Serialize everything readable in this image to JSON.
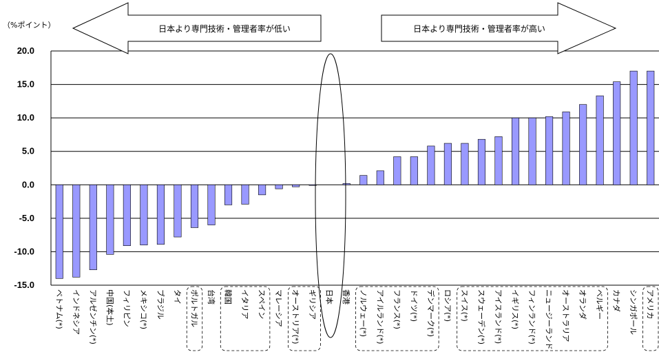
{
  "chart_data": {
    "type": "bar",
    "unit_label": "（%ポイント）",
    "left_arrow_label": "日本より専門技術・管理者率が低い",
    "right_arrow_label": "日本より専門技術・管理者率が高い",
    "ylim": [
      -15,
      20
    ],
    "yticks": [
      "20.0",
      "15.0",
      "10.0",
      "5.0",
      "0.0",
      "-5.0",
      "-10.0",
      "-15.0"
    ],
    "grid": true,
    "bar_color": "#9999ff",
    "categories": [
      "ベトナム(*)",
      "インドネシア",
      "アルゼンチン(*)",
      "中国(本土)",
      "フィリピン",
      "メキシコ(*)",
      "ブラジル",
      "タイ",
      "ポルトガル",
      "台湾",
      "韓国",
      "イタリア",
      "スペイン",
      "マレーシア",
      "オーストリア(*)",
      "ギリシア",
      "日本",
      "香港",
      "ノルウェー(*)",
      "アイルランド(*)",
      "フランス(*)",
      "ドイツ(*)",
      "デンマーク(*)",
      "ロシア(*)",
      "スイス(*)",
      "スウェーデン(*)",
      "アイスランド(*)",
      "イギリス(*)",
      "フィンランド(*)",
      "ニュージーランド",
      "オーストラリア",
      "オランダ",
      "ベルギー",
      "カナダ",
      "シンガポール",
      "アメリカ"
    ],
    "values": [
      -14.0,
      -13.8,
      -12.7,
      -10.4,
      -9.1,
      -9.0,
      -8.9,
      -7.8,
      -6.4,
      -6.0,
      -3.0,
      -2.9,
      -1.5,
      -0.6,
      -0.3,
      -0.1,
      0.0,
      0.2,
      1.4,
      2.1,
      4.2,
      4.2,
      5.8,
      6.2,
      6.2,
      6.8,
      7.2,
      10.0,
      10.0,
      10.2,
      10.9,
      12.0,
      13.3,
      15.4,
      17.0,
      17.0
    ],
    "highlighted": "日本",
    "dashed_groups": [
      [
        "ポルトガル"
      ],
      [
        "韓国",
        "イタリア",
        "スペイン"
      ],
      [
        "オーストリア(*)",
        "ギリシア"
      ],
      [
        "ノルウェー(*)",
        "アイルランド(*)",
        "フランス(*)",
        "ドイツ(*)",
        "デンマーク(*)"
      ],
      [
        "スイス(*)",
        "スウェーデン(*)",
        "アイスランド(*)",
        "イギリス(*)",
        "フィンランド(*)",
        "ニュージーランド",
        "オーストラリア",
        "オランダ",
        "ベルギー"
      ],
      [
        "アメリカ"
      ]
    ]
  }
}
